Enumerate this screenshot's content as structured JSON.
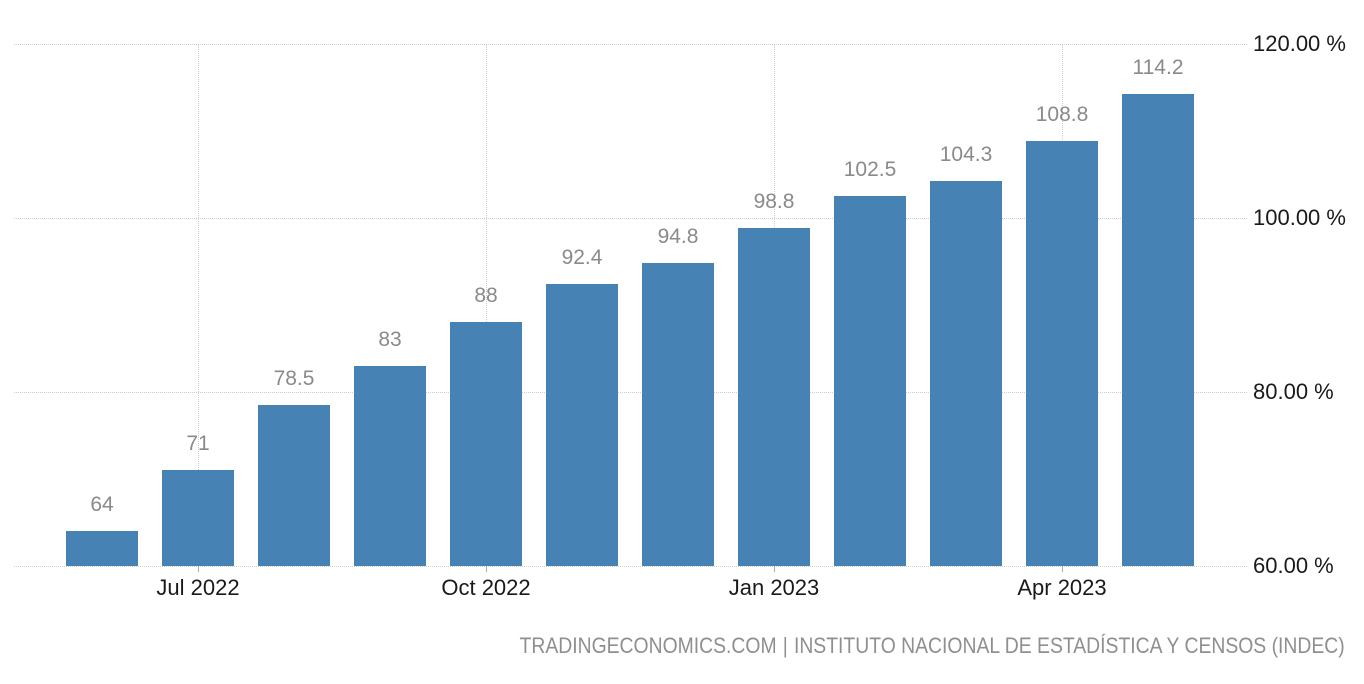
{
  "chart_data": {
    "type": "bar",
    "title": "",
    "xlabel": "",
    "ylabel": "",
    "values": [
      64,
      71,
      78.5,
      83,
      88,
      92.4,
      94.8,
      98.8,
      102.5,
      104.3,
      108.8,
      114.2
    ],
    "bar_value_labels": [
      "64",
      "71",
      "78.5",
      "83",
      "88",
      "92.4",
      "94.8",
      "98.8",
      "102.5",
      "104.3",
      "108.8",
      "114.2"
    ],
    "x_axis": {
      "ticks": [
        {
          "bar_index": 1,
          "label": "Jul 2022"
        },
        {
          "bar_index": 4,
          "label": "Oct 2022"
        },
        {
          "bar_index": 7,
          "label": "Jan 2023"
        },
        {
          "bar_index": 10,
          "label": "Apr 2023"
        }
      ]
    },
    "y_axis": {
      "min": 60,
      "max": 120,
      "unit": "%",
      "ticks": [
        {
          "value": 120,
          "label": "120.00 %"
        },
        {
          "value": 100,
          "label": "100.00 %"
        },
        {
          "value": 80,
          "label": "80.00 %"
        },
        {
          "value": 60,
          "label": "60.00 %"
        }
      ]
    },
    "grid": {
      "style": "dotted",
      "horizontal": true,
      "vertical": true
    },
    "legend": "none",
    "colors": {
      "bar": "#4682B4",
      "value_label": "#8a8a8a",
      "axis_label": "#1a1a1a",
      "grid": "#cccccc",
      "footer": "#8f8f8f"
    }
  },
  "footer": {
    "source_left": "TRADINGECONOMICS.COM",
    "separator": "|",
    "source_right": "INSTITUTO NACIONAL DE ESTADÍSTICA Y CENSOS (INDEC)",
    "full_text": "TRADINGECONOMICS.COM | INSTITUTO NACIONAL DE ESTADÍSTICA Y CENSOS (INDEC)"
  }
}
